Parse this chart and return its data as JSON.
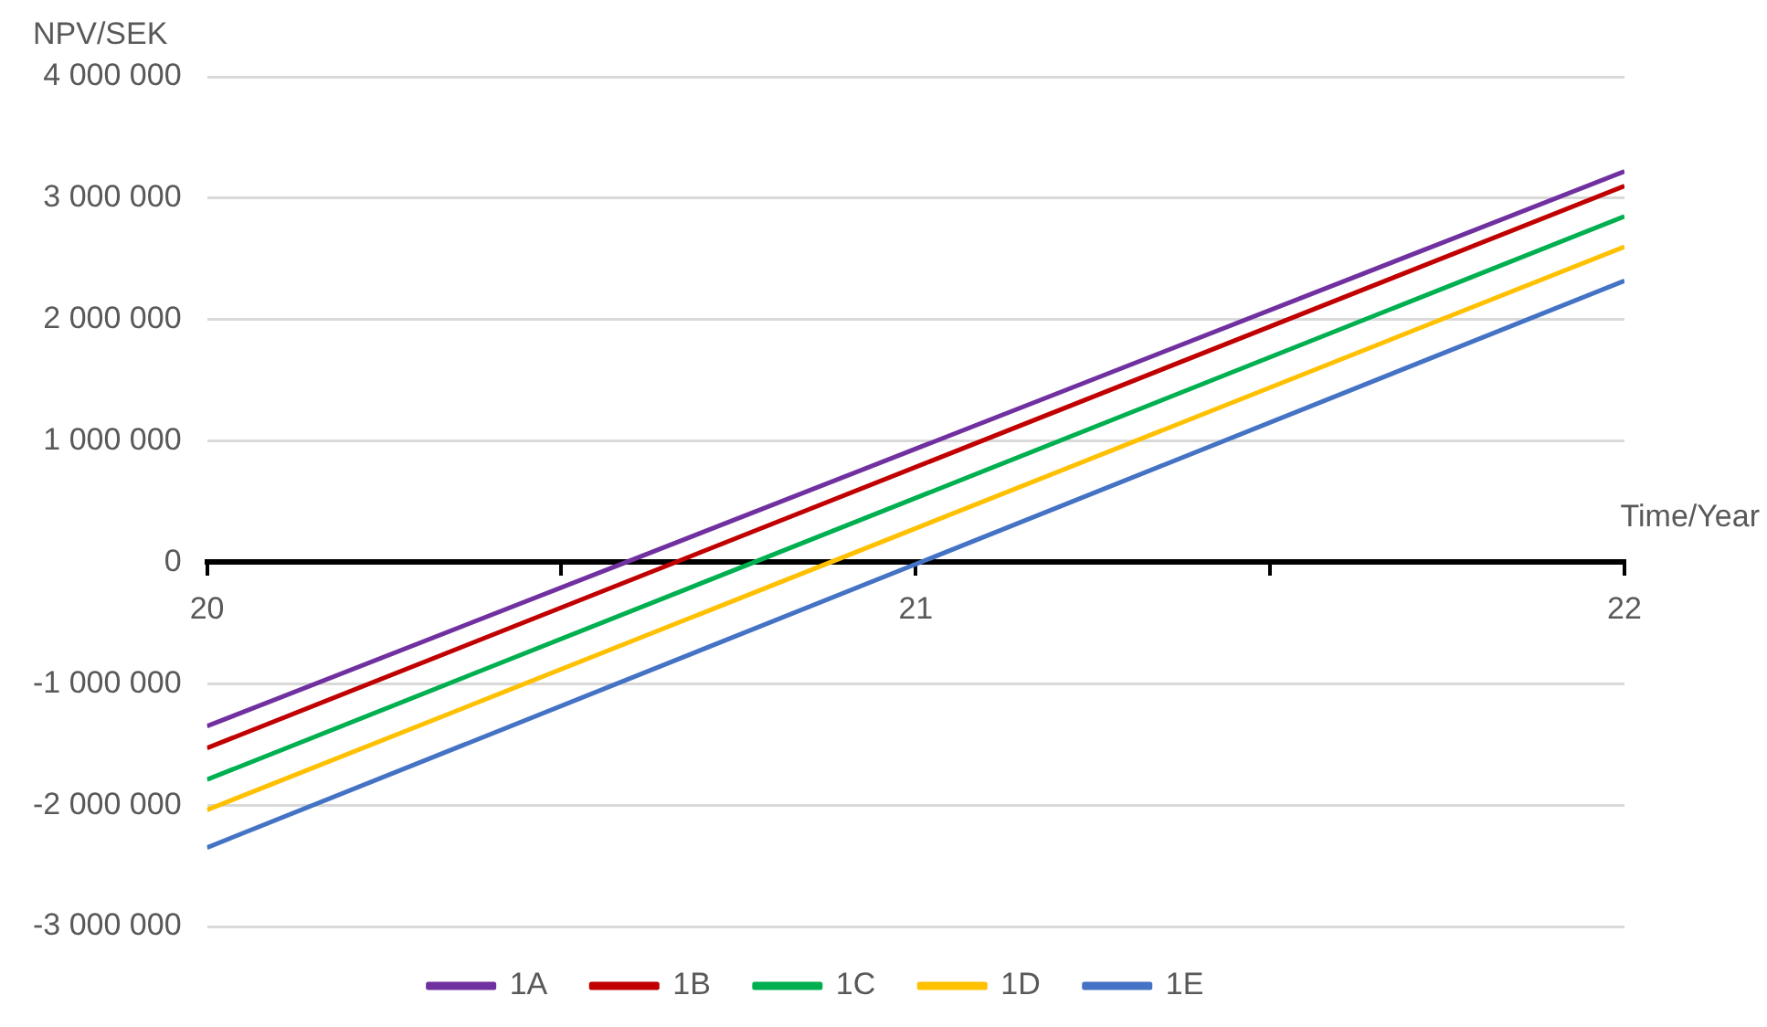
{
  "chart_data": {
    "type": "line",
    "xlabel": "Time/Year",
    "ylabel": "NPV/SEK",
    "xlim": [
      20,
      22
    ],
    "xticks": [
      20,
      {
        "value": 20.5,
        "label": null
      },
      21,
      {
        "value": 21.5,
        "label": null
      },
      22
    ],
    "ylim": [
      -3000000,
      4000000
    ],
    "yticks": [
      {
        "value": -3000000,
        "label": "-3 000 000"
      },
      {
        "value": -2000000,
        "label": "-2 000 000"
      },
      {
        "value": -1000000,
        "label": "-1 000 000"
      },
      {
        "value": 0,
        "label": "0"
      },
      {
        "value": 1000000,
        "label": "1 000 000"
      },
      {
        "value": 2000000,
        "label": "2 000 000"
      },
      {
        "value": 3000000,
        "label": "3 000 000"
      },
      {
        "value": 4000000,
        "label": "4 000 000"
      }
    ],
    "x": [
      20,
      22
    ],
    "series": [
      {
        "name": "1A",
        "color": "#7030a0",
        "values": [
          -1350000,
          3220000
        ]
      },
      {
        "name": "1B",
        "color": "#c00000",
        "values": [
          -1530000,
          3100000
        ]
      },
      {
        "name": "1C",
        "color": "#00b050",
        "values": [
          -1790000,
          2850000
        ]
      },
      {
        "name": "1D",
        "color": "#ffc000",
        "values": [
          -2040000,
          2600000
        ]
      },
      {
        "name": "1E",
        "color": "#4472c4",
        "values": [
          -2350000,
          2320000
        ]
      }
    ],
    "grid": "y",
    "legend": "bottom",
    "marker": "none",
    "line_style": "solid"
  }
}
